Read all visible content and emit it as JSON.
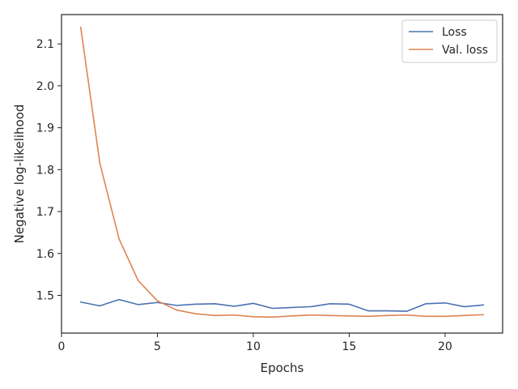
{
  "chart_data": {
    "type": "line",
    "xlabel": "Epochs",
    "ylabel": "Negative log-likelihood",
    "xlim": [
      0,
      23
    ],
    "ylim": [
      1.41,
      2.17
    ],
    "xticks": [
      0,
      5,
      10,
      15,
      20
    ],
    "yticks": [
      1.5,
      1.6,
      1.7,
      1.8,
      1.9,
      2.0,
      2.1
    ],
    "grid": false,
    "legend_position": "top-right",
    "series": [
      {
        "name": "Loss",
        "color": "#4c72b0",
        "x": [
          1,
          2,
          3,
          4,
          5,
          6,
          7,
          8,
          9,
          10,
          11,
          12,
          13,
          14,
          15,
          16,
          17,
          18,
          19,
          20,
          21,
          22
        ],
        "values": [
          1.484,
          1.475,
          1.49,
          1.478,
          1.483,
          1.476,
          1.479,
          1.48,
          1.474,
          1.481,
          1.469,
          1.471,
          1.473,
          1.48,
          1.479,
          1.463,
          1.463,
          1.462,
          1.48,
          1.482,
          1.473,
          1.477
        ]
      },
      {
        "name": "Val. loss",
        "color": "#dd8452",
        "x": [
          1,
          2,
          3,
          4,
          5,
          6,
          7,
          8,
          9,
          10,
          11,
          12,
          13,
          14,
          15,
          16,
          17,
          18,
          19,
          20,
          21,
          22
        ],
        "values": [
          2.14,
          1.815,
          1.635,
          1.535,
          1.487,
          1.465,
          1.456,
          1.452,
          1.453,
          1.449,
          1.448,
          1.451,
          1.453,
          1.452,
          1.451,
          1.45,
          1.452,
          1.453,
          1.45,
          1.45,
          1.452,
          1.454
        ]
      }
    ]
  }
}
